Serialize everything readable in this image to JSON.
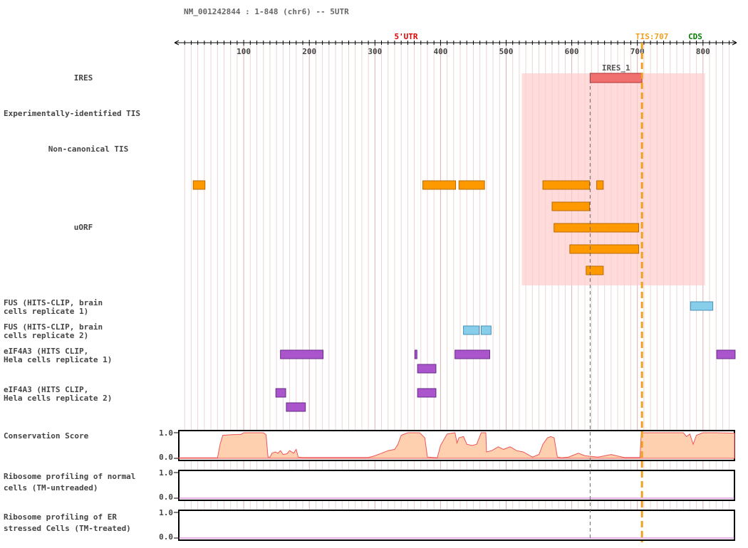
{
  "header": {
    "title": "NM_001242844 : 1-848 (chr6) -- 5UTR"
  },
  "axis": {
    "ticks": [
      100,
      200,
      300,
      400,
      500,
      600,
      700,
      800
    ],
    "range": [
      1,
      848
    ],
    "tick_labels": [
      "100",
      "200",
      "300",
      "400",
      "500",
      "600",
      "700",
      "800"
    ]
  },
  "markers": {
    "utr_label": "5'UTR",
    "utr_color": "#e00000",
    "tis_label": "TIS:707",
    "tis_position": 707,
    "tis_color": "#f0a020",
    "cds_label": "CDS",
    "cds_color": "#008000",
    "ires_start_line": 628
  },
  "tracks": {
    "ires": {
      "label": "IRES"
    },
    "exp_tis": {
      "label": "Experimentally-identified TIS"
    },
    "noncanon_tis": {
      "label": "Non-canonical TIS"
    },
    "uorf": {
      "label": "uORF"
    },
    "fus1": {
      "label_line1": "FUS (HITS-CLIP, brain",
      "label_line2": "cells replicate 1)"
    },
    "fus2": {
      "label_line1": "FUS (HITS-CLIP, brain",
      "label_line2": "cells replicate 2)"
    },
    "eif1": {
      "label_line1": "eIF4A3 (HITS CLIP,",
      "label_line2": "Hela cells replicate 1)"
    },
    "eif2": {
      "label_line1": "eIF4A3 (HITS CLIP,",
      "label_line2": "Hela cells replicate 2)"
    },
    "conservation": {
      "label": "Conservation Score",
      "ymax": "1.0",
      "ymin": "0.0"
    },
    "ribo_normal": {
      "label_line1": "Ribosome profiling of normal",
      "label_line2": "cells (TM-untreaded)",
      "ymax": "1.0",
      "ymin": "0.0"
    },
    "ribo_er": {
      "label_line1": "Ribosome profiling of ER",
      "label_line2": "stressed Cells (TM-treated)",
      "ymax": "1.0",
      "ymin": "0.0"
    }
  },
  "features": {
    "ires_features": [
      {
        "name": "IRES_1",
        "start": 628,
        "end": 707,
        "color": "#f07070"
      }
    ],
    "ires_region": {
      "start": 524,
      "end": 803,
      "color": "#ffcccc"
    },
    "uorf_color": "#ff9900",
    "uorfs": [
      {
        "start": 23,
        "end": 41,
        "row": 0
      },
      {
        "start": 373,
        "end": 423,
        "row": 0
      },
      {
        "start": 428,
        "end": 467,
        "row": 0
      },
      {
        "start": 556,
        "end": 627,
        "row": 0
      },
      {
        "start": 638,
        "end": 648,
        "row": 0
      },
      {
        "start": 570,
        "end": 627,
        "row": 1
      },
      {
        "start": 573,
        "end": 702,
        "row": 2
      },
      {
        "start": 597,
        "end": 702,
        "row": 3
      },
      {
        "start": 622,
        "end": 648,
        "row": 4
      }
    ],
    "fus_color": "#87ceeb",
    "fus1": [
      {
        "start": 781,
        "end": 815
      }
    ],
    "fus2": [
      {
        "start": 435,
        "end": 459
      },
      {
        "start": 462,
        "end": 477
      }
    ],
    "eif_color": "#aa55cc",
    "eif1": [
      {
        "start": 156,
        "end": 221,
        "row": 0
      },
      {
        "start": 361,
        "end": 364,
        "row": 0
      },
      {
        "start": 422,
        "end": 475,
        "row": 0
      },
      {
        "start": 821,
        "end": 849,
        "row": 0
      },
      {
        "start": 365,
        "end": 393,
        "row": 1
      }
    ],
    "eif2": [
      {
        "start": 149,
        "end": 164,
        "row": 0
      },
      {
        "start": 365,
        "end": 393,
        "row": 0
      },
      {
        "start": 165,
        "end": 194,
        "row": 1
      }
    ],
    "conservation_profile": [
      [
        1,
        0.02
      ],
      [
        60,
        0.02
      ],
      [
        64,
        0.55
      ],
      [
        68,
        0.9
      ],
      [
        80,
        0.92
      ],
      [
        96,
        0.94
      ],
      [
        100,
        1.0
      ],
      [
        130,
        1.0
      ],
      [
        134,
        0.92
      ],
      [
        137,
        0.05
      ],
      [
        140,
        0.05
      ],
      [
        143,
        0.2
      ],
      [
        148,
        0.25
      ],
      [
        152,
        0.2
      ],
      [
        156,
        0.3
      ],
      [
        160,
        0.15
      ],
      [
        166,
        0.18
      ],
      [
        170,
        0.3
      ],
      [
        176,
        0.2
      ],
      [
        180,
        0.35
      ],
      [
        183,
        0.05
      ],
      [
        190,
        0.03
      ],
      [
        290,
        0.03
      ],
      [
        300,
        0.1
      ],
      [
        310,
        0.2
      ],
      [
        320,
        0.3
      ],
      [
        330,
        0.35
      ],
      [
        335,
        0.55
      ],
      [
        340,
        0.9
      ],
      [
        350,
        1.0
      ],
      [
        368,
        1.0
      ],
      [
        376,
        0.8
      ],
      [
        380,
        0.05
      ],
      [
        395,
        0.02
      ],
      [
        400,
        0.5
      ],
      [
        410,
        0.95
      ],
      [
        422,
        1.0
      ],
      [
        425,
        0.6
      ],
      [
        428,
        0.8
      ],
      [
        435,
        0.85
      ],
      [
        440,
        0.55
      ],
      [
        448,
        0.5
      ],
      [
        455,
        0.55
      ],
      [
        462,
        1.0
      ],
      [
        469,
        1.0
      ],
      [
        470,
        0.25
      ],
      [
        478,
        0.3
      ],
      [
        488,
        0.45
      ],
      [
        496,
        0.35
      ],
      [
        506,
        0.45
      ],
      [
        516,
        0.3
      ],
      [
        526,
        0.25
      ],
      [
        540,
        0.05
      ],
      [
        550,
        0.15
      ],
      [
        556,
        0.55
      ],
      [
        563,
        0.8
      ],
      [
        568,
        0.85
      ],
      [
        573,
        0.8
      ],
      [
        578,
        0.05
      ],
      [
        585,
        0.02
      ],
      [
        595,
        0.05
      ],
      [
        610,
        0.2
      ],
      [
        620,
        0.1
      ],
      [
        640,
        0.05
      ],
      [
        660,
        0.15
      ],
      [
        680,
        0.03
      ],
      [
        704,
        0.03
      ],
      [
        706,
        1.0
      ],
      [
        740,
        1.0
      ],
      [
        770,
        1.0
      ],
      [
        775,
        0.85
      ],
      [
        780,
        0.95
      ],
      [
        785,
        0.55
      ],
      [
        790,
        0.9
      ],
      [
        800,
        1.0
      ],
      [
        820,
        1.0
      ],
      [
        848,
        0.98
      ]
    ],
    "conservation_color": "#ffd0b0",
    "conservation_line": "#ee5555",
    "ribo_line_color": "#cc66cc"
  }
}
